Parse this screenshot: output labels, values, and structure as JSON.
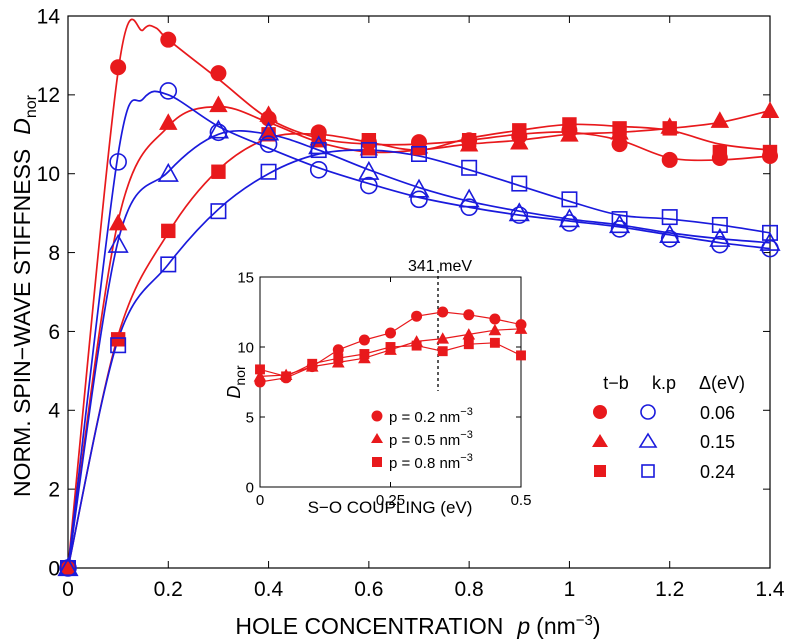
{
  "chart_data": [
    {
      "type": "line",
      "title": "",
      "xlabel": "HOLE CONCENTRATION",
      "xlabel_var": "p",
      "xlabel_unit_pre": "(nm",
      "xlabel_unit_exp": "−3",
      "xlabel_unit_post": ")",
      "ylabel": "NORM. SPIN−WAVE STIFFNESS",
      "ylabel_var": "D",
      "ylabel_sub": "nor",
      "xlim": [
        0,
        1.4
      ],
      "ylim": [
        0,
        14
      ],
      "xticks": [
        0,
        0.2,
        0.4,
        0.6,
        0.8,
        1,
        1.2,
        1.4
      ],
      "xtick_labels": [
        "0",
        "0.2",
        "0.4",
        "0.6",
        "0.8",
        "1",
        "1.2",
        "1.4"
      ],
      "yticks": [
        0,
        2,
        4,
        6,
        8,
        10,
        12,
        14
      ],
      "ytick_labels": [
        "0",
        "2",
        "4",
        "6",
        "8",
        "10",
        "12",
        "14"
      ],
      "x": [
        0,
        0.1,
        0.2,
        0.3,
        0.4,
        0.5,
        0.6,
        0.7,
        0.8,
        0.9,
        1.0,
        1.1,
        1.2,
        1.3,
        1.4
      ],
      "legend": {
        "header_tb": "t−b",
        "header_kp": "k.p",
        "header_delta": "Δ(eV)",
        "rows": [
          "0.06",
          "0.15",
          "0.24"
        ]
      },
      "series": [
        {
          "name": "t-b Δ=0.06",
          "color": "#e8191c",
          "marker": "circle",
          "filled": true,
          "values": [
            0,
            12.7,
            13.4,
            12.55,
            11.4,
            11.05,
            10.8,
            10.8,
            10.85,
            10.95,
            11.1,
            10.75,
            10.35,
            10.4,
            10.45
          ],
          "curve_x": [
            0,
            0.1,
            0.15,
            0.175,
            0.2,
            0.3,
            0.4,
            0.5,
            0.6,
            0.7,
            0.8,
            0.9,
            1.0,
            1.1,
            1.2,
            1.3,
            1.4
          ],
          "curve_y": [
            0,
            12.6,
            13.65,
            13.7,
            13.4,
            12.4,
            11.4,
            10.9,
            10.75,
            10.75,
            10.85,
            11.0,
            11.05,
            10.85,
            10.4,
            10.35,
            10.45
          ]
        },
        {
          "name": "t-b Δ=0.15",
          "color": "#e8191c",
          "marker": "triangle",
          "filled": true,
          "values": [
            0,
            8.75,
            11.3,
            11.75,
            11.5,
            10.9,
            10.65,
            10.7,
            10.75,
            10.8,
            11.0,
            11.05,
            11.2,
            11.35,
            11.6
          ],
          "curve_x": [
            0,
            0.1,
            0.2,
            0.3,
            0.4,
            0.5,
            0.6,
            0.7,
            0.8,
            0.9,
            1.0,
            1.1,
            1.2,
            1.3,
            1.4
          ],
          "curve_y": [
            0,
            8.8,
            11.2,
            11.7,
            11.3,
            10.8,
            10.55,
            10.6,
            10.75,
            10.85,
            11.0,
            11.05,
            11.15,
            11.3,
            11.6
          ]
        },
        {
          "name": "t-b Δ=0.24",
          "color": "#e8191c",
          "marker": "square",
          "filled": true,
          "values": [
            0,
            5.8,
            8.55,
            10.05,
            11.0,
            10.85,
            10.85,
            10.65,
            10.85,
            11.1,
            11.25,
            11.15,
            11.15,
            10.55,
            10.55
          ],
          "curve_x": [
            0,
            0.1,
            0.2,
            0.3,
            0.4,
            0.5,
            0.6,
            0.7,
            0.8,
            0.9,
            1.0,
            1.1,
            1.2,
            1.3,
            1.4
          ],
          "curve_y": [
            0,
            5.9,
            8.5,
            10.1,
            10.9,
            11.0,
            10.8,
            10.6,
            10.9,
            11.1,
            11.25,
            11.2,
            11.1,
            10.75,
            10.6
          ]
        },
        {
          "name": "k.p Δ=0.06",
          "color": "#1a1adc",
          "marker": "circle",
          "filled": false,
          "values": [
            0,
            10.3,
            12.1,
            11.05,
            10.75,
            10.1,
            9.7,
            9.35,
            9.15,
            8.95,
            8.75,
            8.6,
            8.35,
            8.2,
            8.1
          ],
          "curve_x": [
            0,
            0.1,
            0.15,
            0.2,
            0.3,
            0.4,
            0.5,
            0.6,
            0.7,
            0.8,
            0.9,
            1.0,
            1.1,
            1.2,
            1.3,
            1.4
          ],
          "curve_y": [
            0,
            10.5,
            11.9,
            12.0,
            11.2,
            10.65,
            10.15,
            9.75,
            9.4,
            9.15,
            8.95,
            8.8,
            8.65,
            8.45,
            8.25,
            8.1
          ]
        },
        {
          "name": "k.p Δ=0.15",
          "color": "#1a1adc",
          "marker": "triangle",
          "filled": false,
          "values": [
            0,
            8.2,
            10.0,
            11.1,
            11.05,
            10.7,
            10.05,
            9.6,
            9.35,
            9.0,
            8.85,
            8.7,
            8.45,
            8.35,
            8.25
          ],
          "curve_x": [
            0,
            0.1,
            0.2,
            0.3,
            0.4,
            0.5,
            0.6,
            0.7,
            0.8,
            0.9,
            1.0,
            1.1,
            1.2,
            1.3,
            1.4
          ],
          "curve_y": [
            0,
            8.3,
            10.05,
            11.0,
            11.0,
            10.6,
            10.1,
            9.65,
            9.3,
            9.05,
            8.85,
            8.7,
            8.5,
            8.35,
            8.25
          ]
        },
        {
          "name": "k.p Δ=0.24",
          "color": "#1a1adc",
          "marker": "square",
          "filled": false,
          "values": [
            0,
            5.65,
            7.7,
            9.05,
            10.05,
            10.6,
            10.6,
            10.5,
            10.15,
            9.75,
            9.35,
            8.85,
            8.9,
            8.7,
            8.5
          ],
          "curve_x": [
            0,
            0.1,
            0.2,
            0.3,
            0.4,
            0.5,
            0.6,
            0.7,
            0.8,
            0.9,
            1.0,
            1.1,
            1.2,
            1.3,
            1.4
          ],
          "curve_y": [
            0,
            5.8,
            7.7,
            9.1,
            10.0,
            10.5,
            10.6,
            10.45,
            10.1,
            9.7,
            9.3,
            8.95,
            8.85,
            8.7,
            8.5
          ]
        }
      ]
    },
    {
      "type": "line",
      "title": "",
      "xlabel": "S−O COUPLING (eV)",
      "ylabel_var": "D",
      "ylabel_sub": "nor",
      "xlim": [
        0,
        0.5
      ],
      "ylim": [
        0,
        15
      ],
      "xticks": [
        0,
        0.25,
        0.5
      ],
      "xtick_labels": [
        "0",
        "0.25",
        "0.5"
      ],
      "yticks": [
        0,
        5,
        10,
        15
      ],
      "ytick_labels": [
        "0",
        "5",
        "10",
        "15"
      ],
      "vline": {
        "x": 0.341,
        "label": "341 meV"
      },
      "x": [
        0,
        0.05,
        0.1,
        0.15,
        0.2,
        0.25,
        0.3,
        0.35,
        0.4,
        0.45,
        0.5
      ],
      "legend": {
        "entries": [
          {
            "pre": "p = 0.2 nm",
            "exp": "−3"
          },
          {
            "pre": "p = 0.5 nm",
            "exp": "−3"
          },
          {
            "pre": "p = 0.8 nm",
            "exp": "−3"
          }
        ]
      },
      "series": [
        {
          "name": "p = 0.2 nm^-3",
          "color": "#e8191c",
          "marker": "circle",
          "values": [
            7.5,
            7.8,
            8.6,
            9.8,
            10.5,
            11.0,
            12.2,
            12.5,
            12.3,
            12.0,
            11.6
          ]
        },
        {
          "name": "p = 0.5 nm^-3",
          "color": "#e8191c",
          "marker": "triangle",
          "values": [
            7.9,
            8.0,
            8.6,
            8.9,
            9.2,
            9.8,
            10.4,
            10.6,
            10.9,
            11.2,
            11.3
          ]
        },
        {
          "name": "p = 0.8 nm^-3",
          "color": "#e8191c",
          "marker": "square",
          "values": [
            8.4,
            7.9,
            8.8,
            9.2,
            9.5,
            10.0,
            10.1,
            9.7,
            10.2,
            10.3,
            9.4
          ]
        }
      ]
    }
  ]
}
